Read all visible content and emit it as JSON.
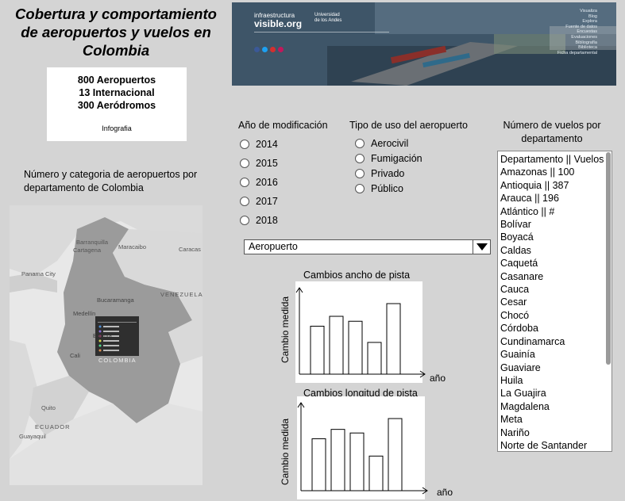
{
  "title": "Cobertura y comportamiento de aeropuertos y vuelos en Colombia",
  "stats": {
    "line1": "800 Aeropuertos",
    "line2": "13 Internacional",
    "line3": "300 Aeródromos",
    "link": "Infografia"
  },
  "banner": {
    "brand1": "infraestructura",
    "brand2": "visible.org",
    "university": "Universidad de los Andes",
    "menu": [
      "Visualiza",
      "Blog",
      "Explora",
      "Fuente de datos",
      "Encuestas",
      "Evaluaciones",
      "Bibliografía",
      "Biblioteca",
      "Ficha departamental"
    ]
  },
  "map": {
    "caption": "Número y categoria de aeropuertos por departamento de Colombia",
    "labels": {
      "barranquilla": "Barranquilla",
      "cartagena": "Cartagena",
      "maracaibo": "Maracaibo",
      "caracas": "Caracas",
      "panama": "Panama City",
      "bucaramanga": "Bucaramanga",
      "venezuela": "VENEZUELA",
      "medellin": "Medellín",
      "bogota": "Bogotá",
      "colombia": "COLOMBIA",
      "cali": "Cali",
      "quito": "Quito",
      "ecuador": "ECUADOR",
      "guayaquil": "Guayaquil"
    }
  },
  "year_filter": {
    "heading": "Año de modificación",
    "options": [
      "2014",
      "2015",
      "2016",
      "2017",
      "2018"
    ]
  },
  "use_filter": {
    "heading": "Tipo de uso del aeropuerto",
    "options": [
      "Aerocivil",
      "Fumigación",
      "Privado",
      "Público"
    ]
  },
  "dropdown": {
    "value": "Aeropuerto"
  },
  "chart1": {
    "title": "Cambios ancho de pista",
    "ylabel": "Cambio medida",
    "xlabel": "año"
  },
  "chart2": {
    "title": "Cambios longitud de pista",
    "ylabel": "Cambio medida",
    "xlabel": "año"
  },
  "chart_data": [
    {
      "type": "bar",
      "title": "Cambios ancho de pista",
      "xlabel": "año",
      "ylabel": "Cambio medida",
      "values": [
        0.68,
        0.82,
        0.75,
        0.45,
        1.0
      ]
    },
    {
      "type": "bar",
      "title": "Cambios longitud de pista",
      "xlabel": "año",
      "ylabel": "Cambio medida",
      "values": [
        0.72,
        0.85,
        0.8,
        0.48,
        1.0
      ]
    }
  ],
  "flights": {
    "heading": "Número de vuelos por departamento",
    "items": [
      "Departamento || Vuelos",
      "Amazonas || 100",
      "Antioquia || 387",
      "Arauca || 196",
      "Atlántico || #",
      "Bolívar",
      "Boyacá",
      "Caldas",
      "Caquetá",
      "Casanare",
      "Cauca",
      "Cesar",
      "Chocó",
      "Córdoba",
      "Cundinamarca",
      "Guainía",
      "Guaviare",
      "Huila",
      "La Guajira",
      "Magdalena",
      "Meta",
      "Nariño",
      "Norte de Santander"
    ]
  }
}
